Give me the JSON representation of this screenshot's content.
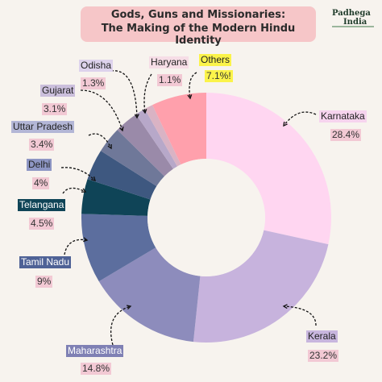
{
  "title": {
    "line1": "Gods, Guns and Missionaries:",
    "line2": "The Making of the Modern Hindu Identity"
  },
  "logo": {
    "line1": "Padhega",
    "line2": "India"
  },
  "chart_data": {
    "type": "pie",
    "donut": true,
    "slices": [
      {
        "label": "Karnataka",
        "value": 28.4,
        "pct_text": "28.4%",
        "color": "#ffd6f1",
        "label_bg": "#f6d4ee",
        "label_color": "#222"
      },
      {
        "label": "Kerala",
        "value": 23.2,
        "pct_text": "23.2%",
        "color": "#c7b3dd",
        "label_bg": "#c8b6de",
        "label_color": "#222"
      },
      {
        "label": "Maharashtra",
        "value": 14.8,
        "pct_text": "14.8%",
        "color": "#8d8cbc",
        "label_bg": "#7f80b4",
        "label_color": "#ffffff"
      },
      {
        "label": "Tamil Nadu",
        "value": 9,
        "pct_text": "9%",
        "color": "#5c6e9e",
        "label_bg": "#4f6296",
        "label_color": "#ffffff"
      },
      {
        "label": "Telangana",
        "value": 4.5,
        "pct_text": "4.5%",
        "color": "#0f4457",
        "label_bg": "#0f4457",
        "label_color": "#ffffff"
      },
      {
        "label": "Delhi",
        "value": 4,
        "pct_text": "4%",
        "color": "#3e5880",
        "label_bg": "#8e96c4",
        "label_color": "#222"
      },
      {
        "label": "Uttar Pradesh",
        "value": 3.4,
        "pct_text": "3.4%",
        "color": "#6f7899",
        "label_bg": "#b3b6d6",
        "label_color": "#222"
      },
      {
        "label": "Gujarat",
        "value": 3.1,
        "pct_text": "3.1%",
        "color": "#9a8aa9",
        "label_bg": "#cbbfdc",
        "label_color": "#222"
      },
      {
        "label": "Odisha",
        "value": 1.3,
        "pct_text": "1.3%",
        "color": "#b7a8c9",
        "label_bg": "#ddd2ec",
        "label_color": "#222"
      },
      {
        "label": "Haryana",
        "value": 1.1,
        "pct_text": "1.1%",
        "color": "#d9b3c4",
        "label_bg": "#f6dde6",
        "label_color": "#222"
      },
      {
        "label": "Others",
        "value": 7.1,
        "pct_text": "7.1%!",
        "color": "#ffa0ac",
        "label_bg": "#fbf34a",
        "label_color": "#222"
      }
    ],
    "pct_bg": "#f2c9d4"
  }
}
